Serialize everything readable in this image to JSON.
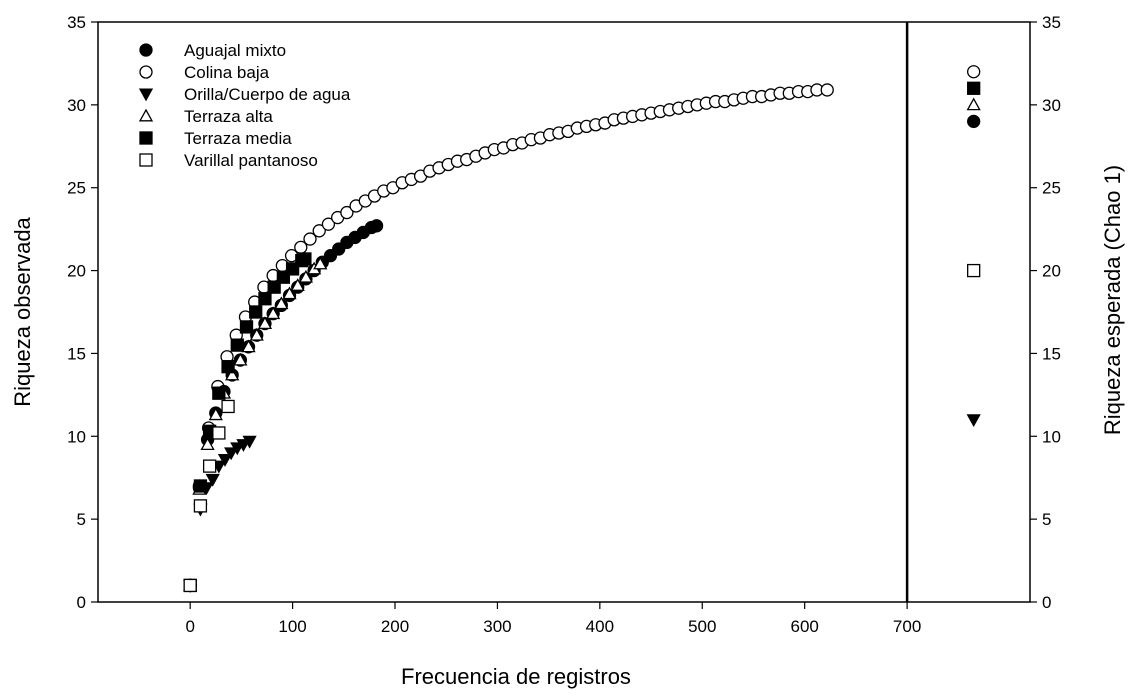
{
  "chart_data": {
    "type": "scatter",
    "xlabel": "Frecuencia de registros",
    "ylabel_left": "Riqueza observada",
    "ylabel_right": "Riqueza esperada (Chao 1)",
    "xlim": [
      -90,
      820
    ],
    "ylim": [
      0,
      35
    ],
    "xticks": [
      0,
      100,
      200,
      300,
      400,
      500,
      600,
      700
    ],
    "yticks": [
      0,
      5,
      10,
      15,
      20,
      25,
      30,
      35
    ],
    "divider_x": 700,
    "chao_x": 765,
    "legend_position": "top-left",
    "series": [
      {
        "name": "Aguajal mixto",
        "marker": "circle-filled",
        "x": [
          0,
          9,
          17,
          25,
          33,
          41,
          49,
          57,
          65,
          73,
          81,
          89,
          97,
          105,
          113,
          121,
          129,
          137,
          145,
          153,
          161,
          169,
          177,
          182
        ],
        "y": [
          1,
          7.0,
          9.8,
          11.4,
          12.7,
          13.7,
          14.6,
          15.4,
          16.1,
          16.8,
          17.4,
          17.9,
          18.5,
          19.0,
          19.5,
          20.0,
          20.5,
          20.9,
          21.3,
          21.7,
          22.0,
          22.3,
          22.6,
          22.7
        ],
        "chao1": 29
      },
      {
        "name": "Colina baja",
        "marker": "circle-open",
        "x": [
          0,
          9,
          18,
          27,
          36,
          45,
          54,
          63,
          72,
          81,
          90,
          99,
          108,
          117,
          126,
          135,
          144,
          153,
          162,
          171,
          180,
          189,
          198,
          207,
          216,
          225,
          234,
          243,
          252,
          261,
          270,
          279,
          288,
          297,
          306,
          315,
          324,
          333,
          342,
          351,
          360,
          369,
          378,
          387,
          396,
          405,
          414,
          423,
          432,
          441,
          450,
          459,
          468,
          477,
          486,
          495,
          504,
          513,
          522,
          531,
          540,
          549,
          558,
          567,
          576,
          585,
          594,
          603,
          612,
          622
        ],
        "y": [
          1,
          6.9,
          10.5,
          13.0,
          14.8,
          16.1,
          17.2,
          18.1,
          19.0,
          19.7,
          20.3,
          20.9,
          21.4,
          21.9,
          22.4,
          22.8,
          23.2,
          23.5,
          23.9,
          24.2,
          24.5,
          24.8,
          25.0,
          25.3,
          25.5,
          25.7,
          26.0,
          26.2,
          26.4,
          26.6,
          26.7,
          26.9,
          27.1,
          27.3,
          27.4,
          27.6,
          27.7,
          27.9,
          28.0,
          28.2,
          28.3,
          28.4,
          28.6,
          28.7,
          28.8,
          28.9,
          29.1,
          29.2,
          29.3,
          29.4,
          29.5,
          29.6,
          29.7,
          29.8,
          29.9,
          30.0,
          30.1,
          30.2,
          30.2,
          30.3,
          30.4,
          30.5,
          30.5,
          30.6,
          30.7,
          30.7,
          30.8,
          30.8,
          30.9,
          30.9
        ],
        "chao1": 32
      },
      {
        "name": "Orilla/Cuerpo de agua",
        "marker": "triangle-down-filled",
        "x": [
          0,
          10,
          16,
          22,
          28,
          34,
          40,
          46,
          52,
          58
        ],
        "y": [
          1,
          5.6,
          6.9,
          7.4,
          8.2,
          8.6,
          9.0,
          9.3,
          9.5,
          9.7
        ],
        "chao1": 11
      },
      {
        "name": "Terraza alta",
        "marker": "triangle-up-open",
        "x": [
          0,
          9,
          17,
          25,
          33,
          41,
          49,
          57,
          65,
          73,
          81,
          89,
          97,
          105,
          113,
          121,
          127
        ],
        "y": [
          1,
          6.8,
          9.5,
          11.3,
          12.6,
          13.7,
          14.6,
          15.4,
          16.1,
          16.8,
          17.4,
          18.0,
          18.6,
          19.1,
          19.6,
          20.1,
          20.4
        ],
        "chao1": 30
      },
      {
        "name": "Terraza media",
        "marker": "square-filled",
        "x": [
          0,
          10,
          19,
          28,
          37,
          46,
          55,
          64,
          73,
          82,
          91,
          100,
          109,
          112
        ],
        "y": [
          1,
          7.0,
          10.3,
          12.6,
          14.2,
          15.5,
          16.6,
          17.5,
          18.3,
          19.0,
          19.6,
          20.1,
          20.6,
          20.7
        ],
        "chao1": 31
      },
      {
        "name": "Varillal pantanoso",
        "marker": "square-open",
        "x": [
          0,
          10,
          19,
          28,
          37
        ],
        "y": [
          1,
          5.8,
          8.2,
          10.2,
          11.8
        ],
        "chao1": 20
      }
    ]
  }
}
